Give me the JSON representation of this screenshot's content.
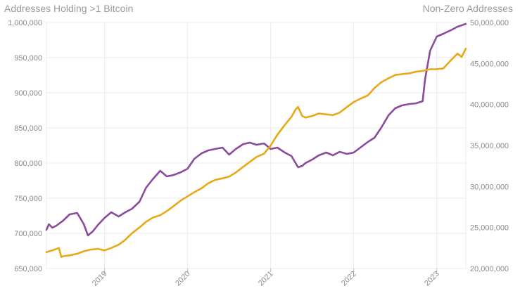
{
  "chart_data": {
    "type": "line",
    "left_axis_title": "Addresses Holding >1 Bitcoin",
    "right_axis_title": "Non-Zero Addresses",
    "y_left": {
      "min": 650000,
      "max": 1000000,
      "ticks": [
        650000,
        700000,
        750000,
        800000,
        850000,
        900000,
        950000,
        1000000
      ],
      "tick_labels": [
        "650,000",
        "700,000",
        "750,000",
        "800,000",
        "850,000",
        "900,000",
        "950,000",
        "1,000,000"
      ]
    },
    "y_right": {
      "min": 20000000,
      "max": 50000000,
      "ticks": [
        20000000,
        25000000,
        30000000,
        35000000,
        40000000,
        45000000,
        50000000
      ],
      "tick_labels": [
        "20,000,000",
        "25,000,000",
        "30,000,000",
        "35,000,000",
        "40,000,000",
        "45,000,000",
        "50,000,000"
      ]
    },
    "x_range": [
      2018.3,
      2023.35
    ],
    "x_ticks": [
      2019,
      2020,
      2021,
      2022,
      2023
    ],
    "x_tick_labels": [
      "2019",
      "2020",
      "2021",
      "2022",
      "2023"
    ],
    "grid": true,
    "series": [
      {
        "name": "Addresses Holding >1 Bitcoin",
        "axis": "left",
        "color": "#8B4A9C",
        "x": [
          2018.3,
          2018.33,
          2018.37,
          2018.42,
          2018.5,
          2018.58,
          2018.67,
          2018.75,
          2018.8,
          2018.86,
          2018.92,
          2019.0,
          2019.08,
          2019.17,
          2019.25,
          2019.33,
          2019.42,
          2019.5,
          2019.58,
          2019.67,
          2019.75,
          2019.83,
          2019.92,
          2020.0,
          2020.08,
          2020.17,
          2020.25,
          2020.33,
          2020.42,
          2020.5,
          2020.58,
          2020.67,
          2020.75,
          2020.83,
          2020.92,
          2021.0,
          2021.08,
          2021.17,
          2021.25,
          2021.33,
          2021.38,
          2021.42,
          2021.5,
          2021.58,
          2021.67,
          2021.75,
          2021.83,
          2021.92,
          2022.0,
          2022.08,
          2022.17,
          2022.25,
          2022.33,
          2022.42,
          2022.5,
          2022.58,
          2022.67,
          2022.75,
          2022.83,
          2022.86,
          2022.92,
          2023.0,
          2023.08,
          2023.17,
          2023.25,
          2023.35
        ],
        "values": [
          705000,
          713000,
          708000,
          711000,
          718000,
          727000,
          729000,
          713000,
          697000,
          703000,
          712000,
          722000,
          730000,
          724000,
          730000,
          735000,
          745000,
          765000,
          777000,
          789000,
          781000,
          783000,
          787000,
          792000,
          806000,
          814000,
          818000,
          820000,
          822000,
          812000,
          820000,
          827000,
          829000,
          826000,
          828000,
          820000,
          822000,
          815000,
          810000,
          794000,
          796000,
          800000,
          805000,
          811000,
          815000,
          811000,
          816000,
          813000,
          815000,
          822000,
          830000,
          836000,
          850000,
          868000,
          878000,
          882000,
          884000,
          885000,
          888000,
          920000,
          960000,
          980000,
          984000,
          989000,
          994000,
          998000
        ]
      },
      {
        "name": "Non-Zero Addresses",
        "axis": "right",
        "color": "#E8A817",
        "x": [
          2018.3,
          2018.37,
          2018.45,
          2018.48,
          2018.5,
          2018.58,
          2018.67,
          2018.75,
          2018.83,
          2018.92,
          2019.0,
          2019.08,
          2019.17,
          2019.25,
          2019.33,
          2019.42,
          2019.5,
          2019.58,
          2019.67,
          2019.75,
          2019.83,
          2019.92,
          2020.0,
          2020.08,
          2020.17,
          2020.25,
          2020.33,
          2020.42,
          2020.5,
          2020.58,
          2020.67,
          2020.75,
          2020.83,
          2020.92,
          2021.0,
          2021.08,
          2021.17,
          2021.25,
          2021.3,
          2021.33,
          2021.38,
          2021.42,
          2021.5,
          2021.58,
          2021.67,
          2021.75,
          2021.83,
          2021.92,
          2022.0,
          2022.08,
          2022.17,
          2022.25,
          2022.33,
          2022.42,
          2022.5,
          2022.58,
          2022.67,
          2022.75,
          2022.83,
          2022.92,
          2023.0,
          2023.08,
          2023.17,
          2023.25,
          2023.3,
          2023.35
        ],
        "values": [
          22000000,
          22200000,
          22500000,
          21400000,
          21500000,
          21600000,
          21800000,
          22100000,
          22300000,
          22400000,
          22200000,
          22500000,
          22900000,
          23500000,
          24300000,
          25000000,
          25700000,
          26200000,
          26500000,
          27000000,
          27600000,
          28300000,
          28800000,
          29300000,
          29800000,
          30400000,
          30800000,
          31000000,
          31200000,
          31700000,
          32400000,
          33000000,
          33600000,
          34000000,
          35000000,
          36300000,
          37500000,
          38500000,
          39400000,
          39700000,
          38600000,
          38400000,
          38600000,
          38900000,
          38800000,
          38700000,
          39000000,
          39700000,
          40300000,
          40700000,
          41100000,
          42000000,
          42700000,
          43200000,
          43600000,
          43700000,
          43800000,
          44000000,
          44100000,
          44300000,
          44300000,
          44400000,
          45400000,
          46200000,
          45800000,
          46800000
        ]
      }
    ]
  }
}
